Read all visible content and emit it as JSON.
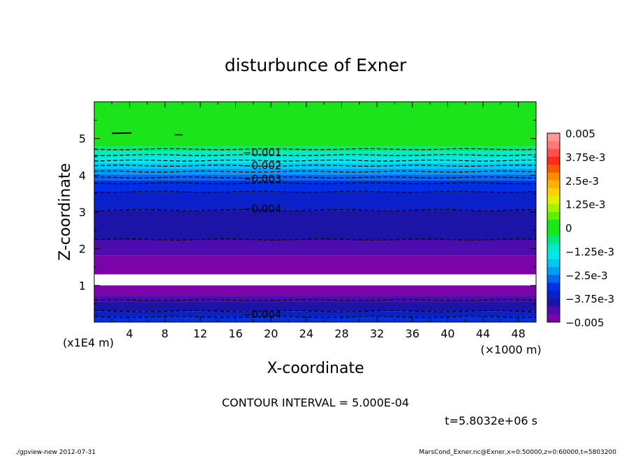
{
  "chart_data": {
    "type": "heatmap",
    "title": "disturbunce of Exner",
    "xlabel": "X-coordinate",
    "ylabel": "Z-coordinate",
    "x_unit": "(×1000 m)",
    "y_unit": "(x1E4 m)",
    "xlim": [
      0,
      50
    ],
    "ylim": [
      0,
      6
    ],
    "x_ticks": [
      4,
      8,
      12,
      16,
      20,
      24,
      28,
      32,
      36,
      40,
      44,
      48
    ],
    "y_ticks": [
      1,
      2,
      3,
      4,
      5
    ],
    "contour_interval_text": "CONTOUR INTERVAL = 5.000E-04",
    "time_text": "t=5.8032e+06 s",
    "contour_labels": [
      {
        "text": "-0.001",
        "x": 19,
        "z": 4.63
      },
      {
        "text": "-0.002",
        "x": 19,
        "z": 4.28
      },
      {
        "text": "-0.003",
        "x": 19,
        "z": 3.92
      },
      {
        "text": "-0.004",
        "x": 19,
        "z": 3.1
      },
      {
        "text": "-0.004",
        "x": 19,
        "z": 0.23
      }
    ],
    "bands": [
      {
        "z0": 4.78,
        "z1": 6.0,
        "color": "#1be41b"
      },
      {
        "z0": 4.65,
        "z1": 4.78,
        "color": "#00e87d"
      },
      {
        "z0": 4.48,
        "z1": 4.65,
        "color": "#00ebc4"
      },
      {
        "z0": 4.33,
        "z1": 4.48,
        "color": "#00e8e8"
      },
      {
        "z0": 4.18,
        "z1": 4.33,
        "color": "#00c8f0"
      },
      {
        "z0": 4.02,
        "z1": 4.18,
        "color": "#009cf5"
      },
      {
        "z0": 3.86,
        "z1": 4.02,
        "color": "#0068f5"
      },
      {
        "z0": 3.55,
        "z1": 3.86,
        "color": "#0030e6"
      },
      {
        "z0": 3.05,
        "z1": 3.55,
        "color": "#0a20c8"
      },
      {
        "z0": 2.25,
        "z1": 3.05,
        "color": "#1c14a6"
      },
      {
        "z0": 1.82,
        "z1": 2.25,
        "color": "#4c0cae"
      },
      {
        "z0": 1.3,
        "z1": 1.82,
        "color": "#7a04a8"
      },
      {
        "z0": 1.0,
        "z1": 1.3,
        "color": "#ffffff"
      },
      {
        "z0": 0.72,
        "z1": 1.0,
        "color": "#7a04a8"
      },
      {
        "z0": 0.55,
        "z1": 0.72,
        "color": "#4c0cae"
      },
      {
        "z0": 0.3,
        "z1": 0.55,
        "color": "#1c14a6"
      },
      {
        "z0": 0.14,
        "z1": 0.3,
        "color": "#0a20c8"
      },
      {
        "z0": 0.0,
        "z1": 0.14,
        "color": "#0030e6"
      }
    ],
    "dashed_contours_z": [
      4.71,
      4.55,
      4.4,
      4.26,
      4.1,
      3.94,
      3.78,
      3.55,
      3.05,
      2.25,
      0.6,
      0.3,
      0.14
    ],
    "colorbar": {
      "min": -0.005,
      "max": 0.005,
      "labels": [
        {
          "text": "0.005",
          "value": 0.005
        },
        {
          "text": "3.75e-3",
          "value": 0.00375
        },
        {
          "text": "2.5e-3",
          "value": 0.0025
        },
        {
          "text": "1.25e-3",
          "value": 0.00125
        },
        {
          "text": "0",
          "value": 0
        },
        {
          "text": "-1.25e-3",
          "value": -0.00125
        },
        {
          "text": "-2.5e-3",
          "value": -0.0025
        },
        {
          "text": "-3.75e-3",
          "value": -0.00375
        },
        {
          "text": "-0.005",
          "value": -0.005
        }
      ],
      "colors_top_to_bottom": [
        "#ff9898",
        "#ff7878",
        "#ff5050",
        "#ff2a1a",
        "#ff5a00",
        "#ff8c00",
        "#ffb000",
        "#ffd200",
        "#e0f000",
        "#a6f000",
        "#5ef000",
        "#18e818",
        "#18e818",
        "#00e87d",
        "#00ebc4",
        "#00e8e8",
        "#00c8f0",
        "#009cf5",
        "#0068f5",
        "#0030e6",
        "#0a20c8",
        "#1c14a6",
        "#4c0cae",
        "#7a04a8"
      ]
    }
  },
  "footer": {
    "left": "./gpview-new   2012-07-31",
    "right": "MarsCond_Exner.nc@Exner,x=0:50000,z=0:60000,t=5803200"
  }
}
